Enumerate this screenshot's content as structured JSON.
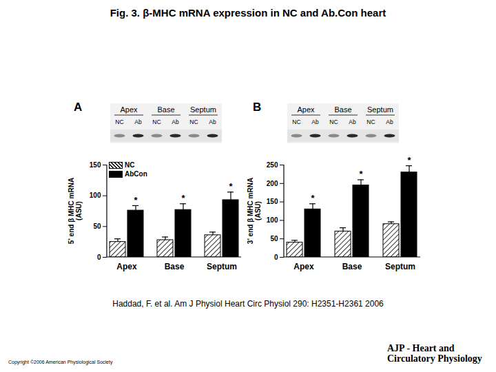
{
  "slide": {
    "title": "Fig. 3. β-MHC mRNA expression in NC and Ab.Con heart",
    "citation": "Haddad, F. et al. Am J Physiol Heart Circ Physiol 290: H2351-H2361 2006",
    "copyright": "Copyright ©2006 American Physiological Society",
    "journal": [
      "AJP - Heart and",
      "Circulatory Physiology"
    ]
  },
  "chart_data": [
    {
      "panel": "A",
      "type": "bar",
      "gel": {
        "groups": [
          "Apex",
          "Base",
          "Septum"
        ],
        "lanes": [
          "NC",
          "Ab"
        ]
      },
      "categories": [
        "Apex",
        "Base",
        "Septum"
      ],
      "series": [
        {
          "name": "NC",
          "color": "#ffffff",
          "values": [
            25,
            28,
            36
          ],
          "errors": [
            5,
            5,
            5
          ]
        },
        {
          "name": "AbCon",
          "color": "#000000",
          "values": [
            76,
            77,
            93
          ],
          "errors": [
            8,
            10,
            13
          ],
          "significance": [
            "*",
            "*",
            "*"
          ]
        }
      ],
      "ylabel": "5' end β MHC mRNA\n(ASU)",
      "ylim": [
        0,
        150
      ],
      "yticks": [
        0,
        50,
        100,
        150
      ],
      "legend": "upper left"
    },
    {
      "panel": "B",
      "type": "bar",
      "gel": {
        "groups": [
          "Apex",
          "Base",
          "Septum"
        ],
        "lanes": [
          "NC",
          "Ab"
        ]
      },
      "categories": [
        "Apex",
        "Base",
        "Septum"
      ],
      "series": [
        {
          "name": "NC",
          "color": "#ffffff",
          "values": [
            40,
            70,
            90
          ],
          "errors": [
            6,
            10,
            6
          ]
        },
        {
          "name": "AbCon",
          "color": "#000000",
          "values": [
            130,
            195,
            230
          ],
          "errors": [
            15,
            15,
            18
          ],
          "significance": [
            "*",
            "*",
            "*"
          ]
        }
      ],
      "ylabel": "3' end β MHC mRNA\n(ASU)",
      "ylim": [
        0,
        250
      ],
      "yticks": [
        0,
        50,
        100,
        150,
        200,
        250
      ]
    }
  ]
}
